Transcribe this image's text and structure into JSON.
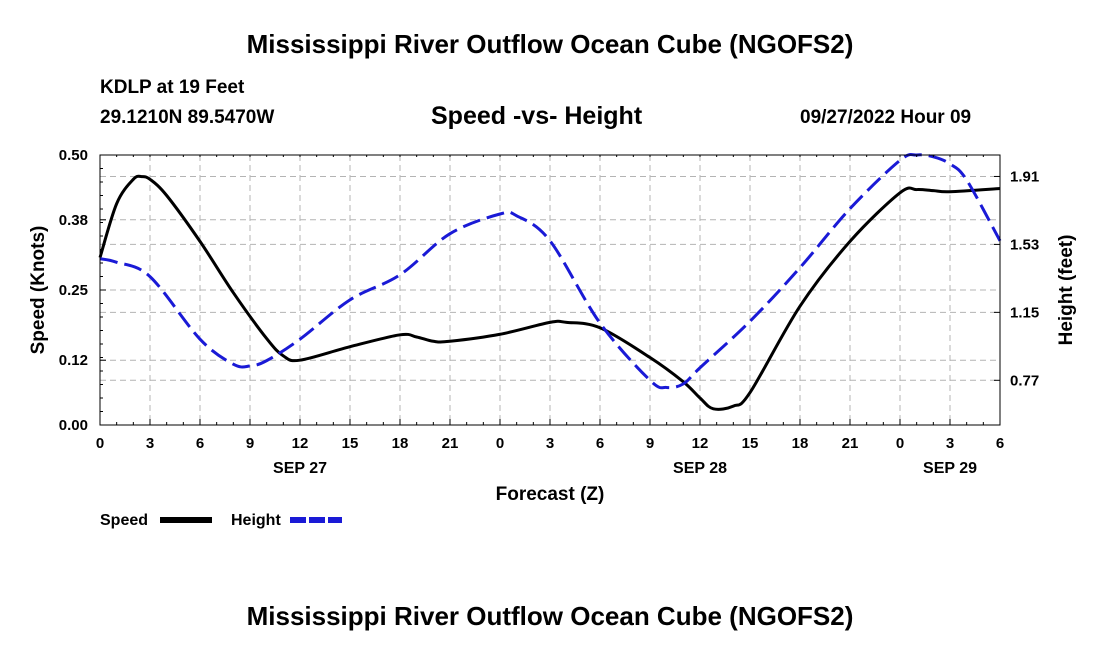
{
  "header": {
    "title": "Mississippi River Outflow Ocean Cube (NGOFS2)",
    "station": "KDLP at 19 Feet",
    "coords": "29.1210N  89.5470W",
    "subtitle": "Speed -vs- Height",
    "datetime": "09/27/2022 Hour 09"
  },
  "footer": {
    "title": "Mississippi River Outflow Ocean Cube (NGOFS2)"
  },
  "legend": {
    "speed_label": "Speed",
    "height_label": "Height"
  },
  "colors": {
    "speed": "#000000",
    "height": "#1a1ad6",
    "grid": "#b4b4b4"
  },
  "chart_data": {
    "type": "line",
    "title": "Speed -vs- Height",
    "xlabel": "Forecast (Z)",
    "ylabel": "Speed (Knots)",
    "y2label": "Height (feet)",
    "x_unit": "hours since 2022-09-27 00Z",
    "xlim": [
      0,
      54
    ],
    "ylim": [
      0,
      0.5
    ],
    "y2lim": [
      0.52,
      2.03
    ],
    "x_ticks": [
      0,
      3,
      6,
      9,
      12,
      15,
      18,
      21,
      24,
      27,
      30,
      33,
      36,
      39,
      42,
      45,
      48,
      51,
      54
    ],
    "x_tick_labels": [
      "0",
      "3",
      "6",
      "9",
      "12",
      "15",
      "18",
      "21",
      "0",
      "3",
      "6",
      "9",
      "12",
      "15",
      "18",
      "21",
      "0",
      "3",
      "6"
    ],
    "date_labels": [
      {
        "x": 12,
        "label": "SEP 27"
      },
      {
        "x": 36,
        "label": "SEP 28"
      },
      {
        "x": 51,
        "label": "SEP 29"
      }
    ],
    "y_ticks": [
      0.0,
      0.12,
      0.25,
      0.38,
      0.5
    ],
    "y_tick_labels": [
      "0.00",
      "0.12",
      "0.25",
      "0.38",
      "0.50"
    ],
    "y2_ticks": [
      0.77,
      1.15,
      1.53,
      1.91
    ],
    "y2_tick_labels": [
      "0.77",
      "1.15",
      "1.53",
      "1.91"
    ],
    "grid": true,
    "series": [
      {
        "name": "Speed",
        "axis": "left",
        "style": "solid",
        "x": [
          0,
          1,
          2,
          2.5,
          3,
          4,
          6,
          8,
          10,
          11,
          12,
          15,
          18,
          19,
          20,
          21,
          24,
          27,
          28,
          30,
          33,
          35,
          36,
          36.8,
          38,
          39,
          42,
          45,
          48,
          49,
          50,
          51,
          54
        ],
        "values": [
          0.31,
          0.41,
          0.455,
          0.46,
          0.455,
          0.425,
          0.34,
          0.245,
          0.16,
          0.128,
          0.12,
          0.145,
          0.167,
          0.163,
          0.155,
          0.155,
          0.168,
          0.19,
          0.19,
          0.18,
          0.125,
          0.08,
          0.05,
          0.03,
          0.035,
          0.06,
          0.22,
          0.34,
          0.43,
          0.436,
          0.434,
          0.432,
          0.438
        ]
      },
      {
        "name": "Height",
        "axis": "right",
        "style": "dashed",
        "x": [
          0,
          1,
          3,
          6,
          8,
          9,
          10,
          12,
          15,
          18,
          21,
          24,
          25,
          27,
          30,
          33,
          34,
          35,
          36,
          39,
          42,
          45,
          48,
          49,
          50,
          51,
          52,
          54
        ],
        "values": [
          1.45,
          1.43,
          1.35,
          1.0,
          0.86,
          0.85,
          0.88,
          1.0,
          1.22,
          1.36,
          1.59,
          1.7,
          1.69,
          1.55,
          1.09,
          0.77,
          0.73,
          0.75,
          0.84,
          1.1,
          1.4,
          1.73,
          2.0,
          2.03,
          2.02,
          1.98,
          1.89,
          1.55
        ]
      }
    ]
  }
}
